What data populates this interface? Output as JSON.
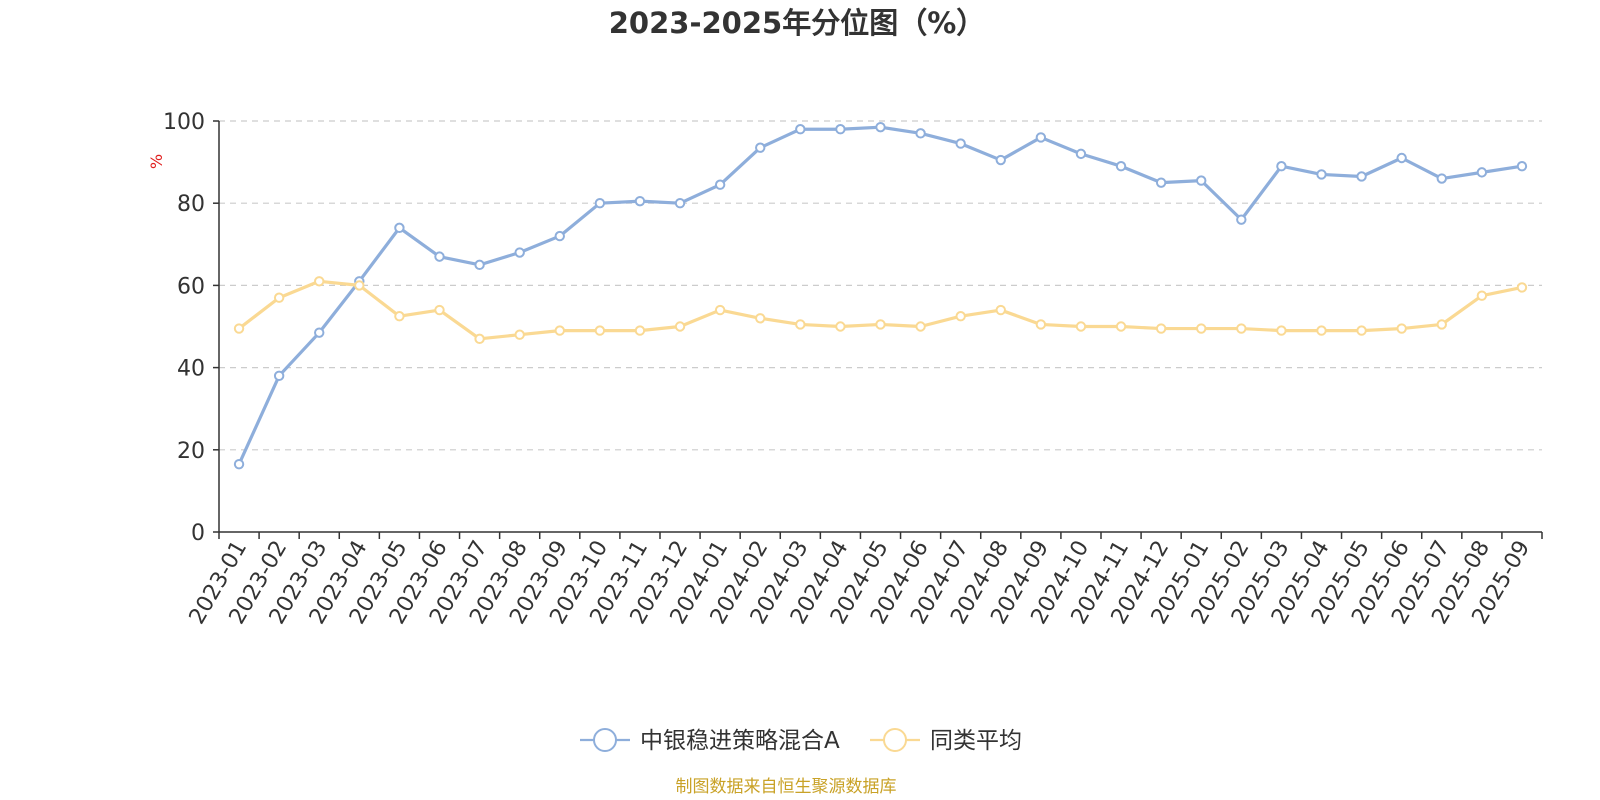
{
  "chart_data": {
    "type": "line",
    "title": "2023-2025年分位图（%）",
    "ylabel": "%",
    "xlabel": "",
    "ylim": [
      0,
      100
    ],
    "yticks": [
      0,
      20,
      40,
      60,
      80,
      100
    ],
    "grid": true,
    "legend_position": "bottom-center",
    "categories": [
      "2023-01",
      "2023-02",
      "2023-03",
      "2023-04",
      "2023-05",
      "2023-06",
      "2023-07",
      "2023-08",
      "2023-09",
      "2023-10",
      "2023-11",
      "2023-12",
      "2024-01",
      "2024-02",
      "2024-03",
      "2024-04",
      "2024-05",
      "2024-06",
      "2024-07",
      "2024-08",
      "2024-09",
      "2024-10",
      "2024-11",
      "2024-12",
      "2025-01",
      "2025-02",
      "2025-03",
      "2025-04",
      "2025-05",
      "2025-06",
      "2025-07",
      "2025-08",
      "2025-09"
    ],
    "series": [
      {
        "name": "中银稳进策略混合A",
        "color": "#8eaedb",
        "values": [
          16.5,
          38,
          48.5,
          61,
          74,
          67,
          65,
          68,
          72,
          80,
          80.5,
          80,
          84.5,
          93.5,
          98,
          98,
          98.5,
          97,
          94.5,
          90.5,
          96,
          92,
          89,
          85,
          85.5,
          76,
          89,
          87,
          86.5,
          91,
          86,
          87.5,
          89
        ]
      },
      {
        "name": "同类平均",
        "color": "#fad993",
        "values": [
          49.5,
          57,
          61,
          60,
          52.5,
          54,
          47,
          48,
          49,
          49,
          49,
          50,
          54,
          52,
          50.5,
          50,
          50.5,
          50,
          52.5,
          54,
          50.5,
          50,
          50,
          49.5,
          49.5,
          49.5,
          49,
          49,
          49,
          49.5,
          50.5,
          57.5,
          59.5
        ]
      }
    ]
  },
  "source_note": "制图数据来自恒生聚源数据库",
  "colors": {
    "axis": "#333333",
    "grid": "#cccccc",
    "ylabel": "#e02020",
    "source": "#c9a227"
  }
}
